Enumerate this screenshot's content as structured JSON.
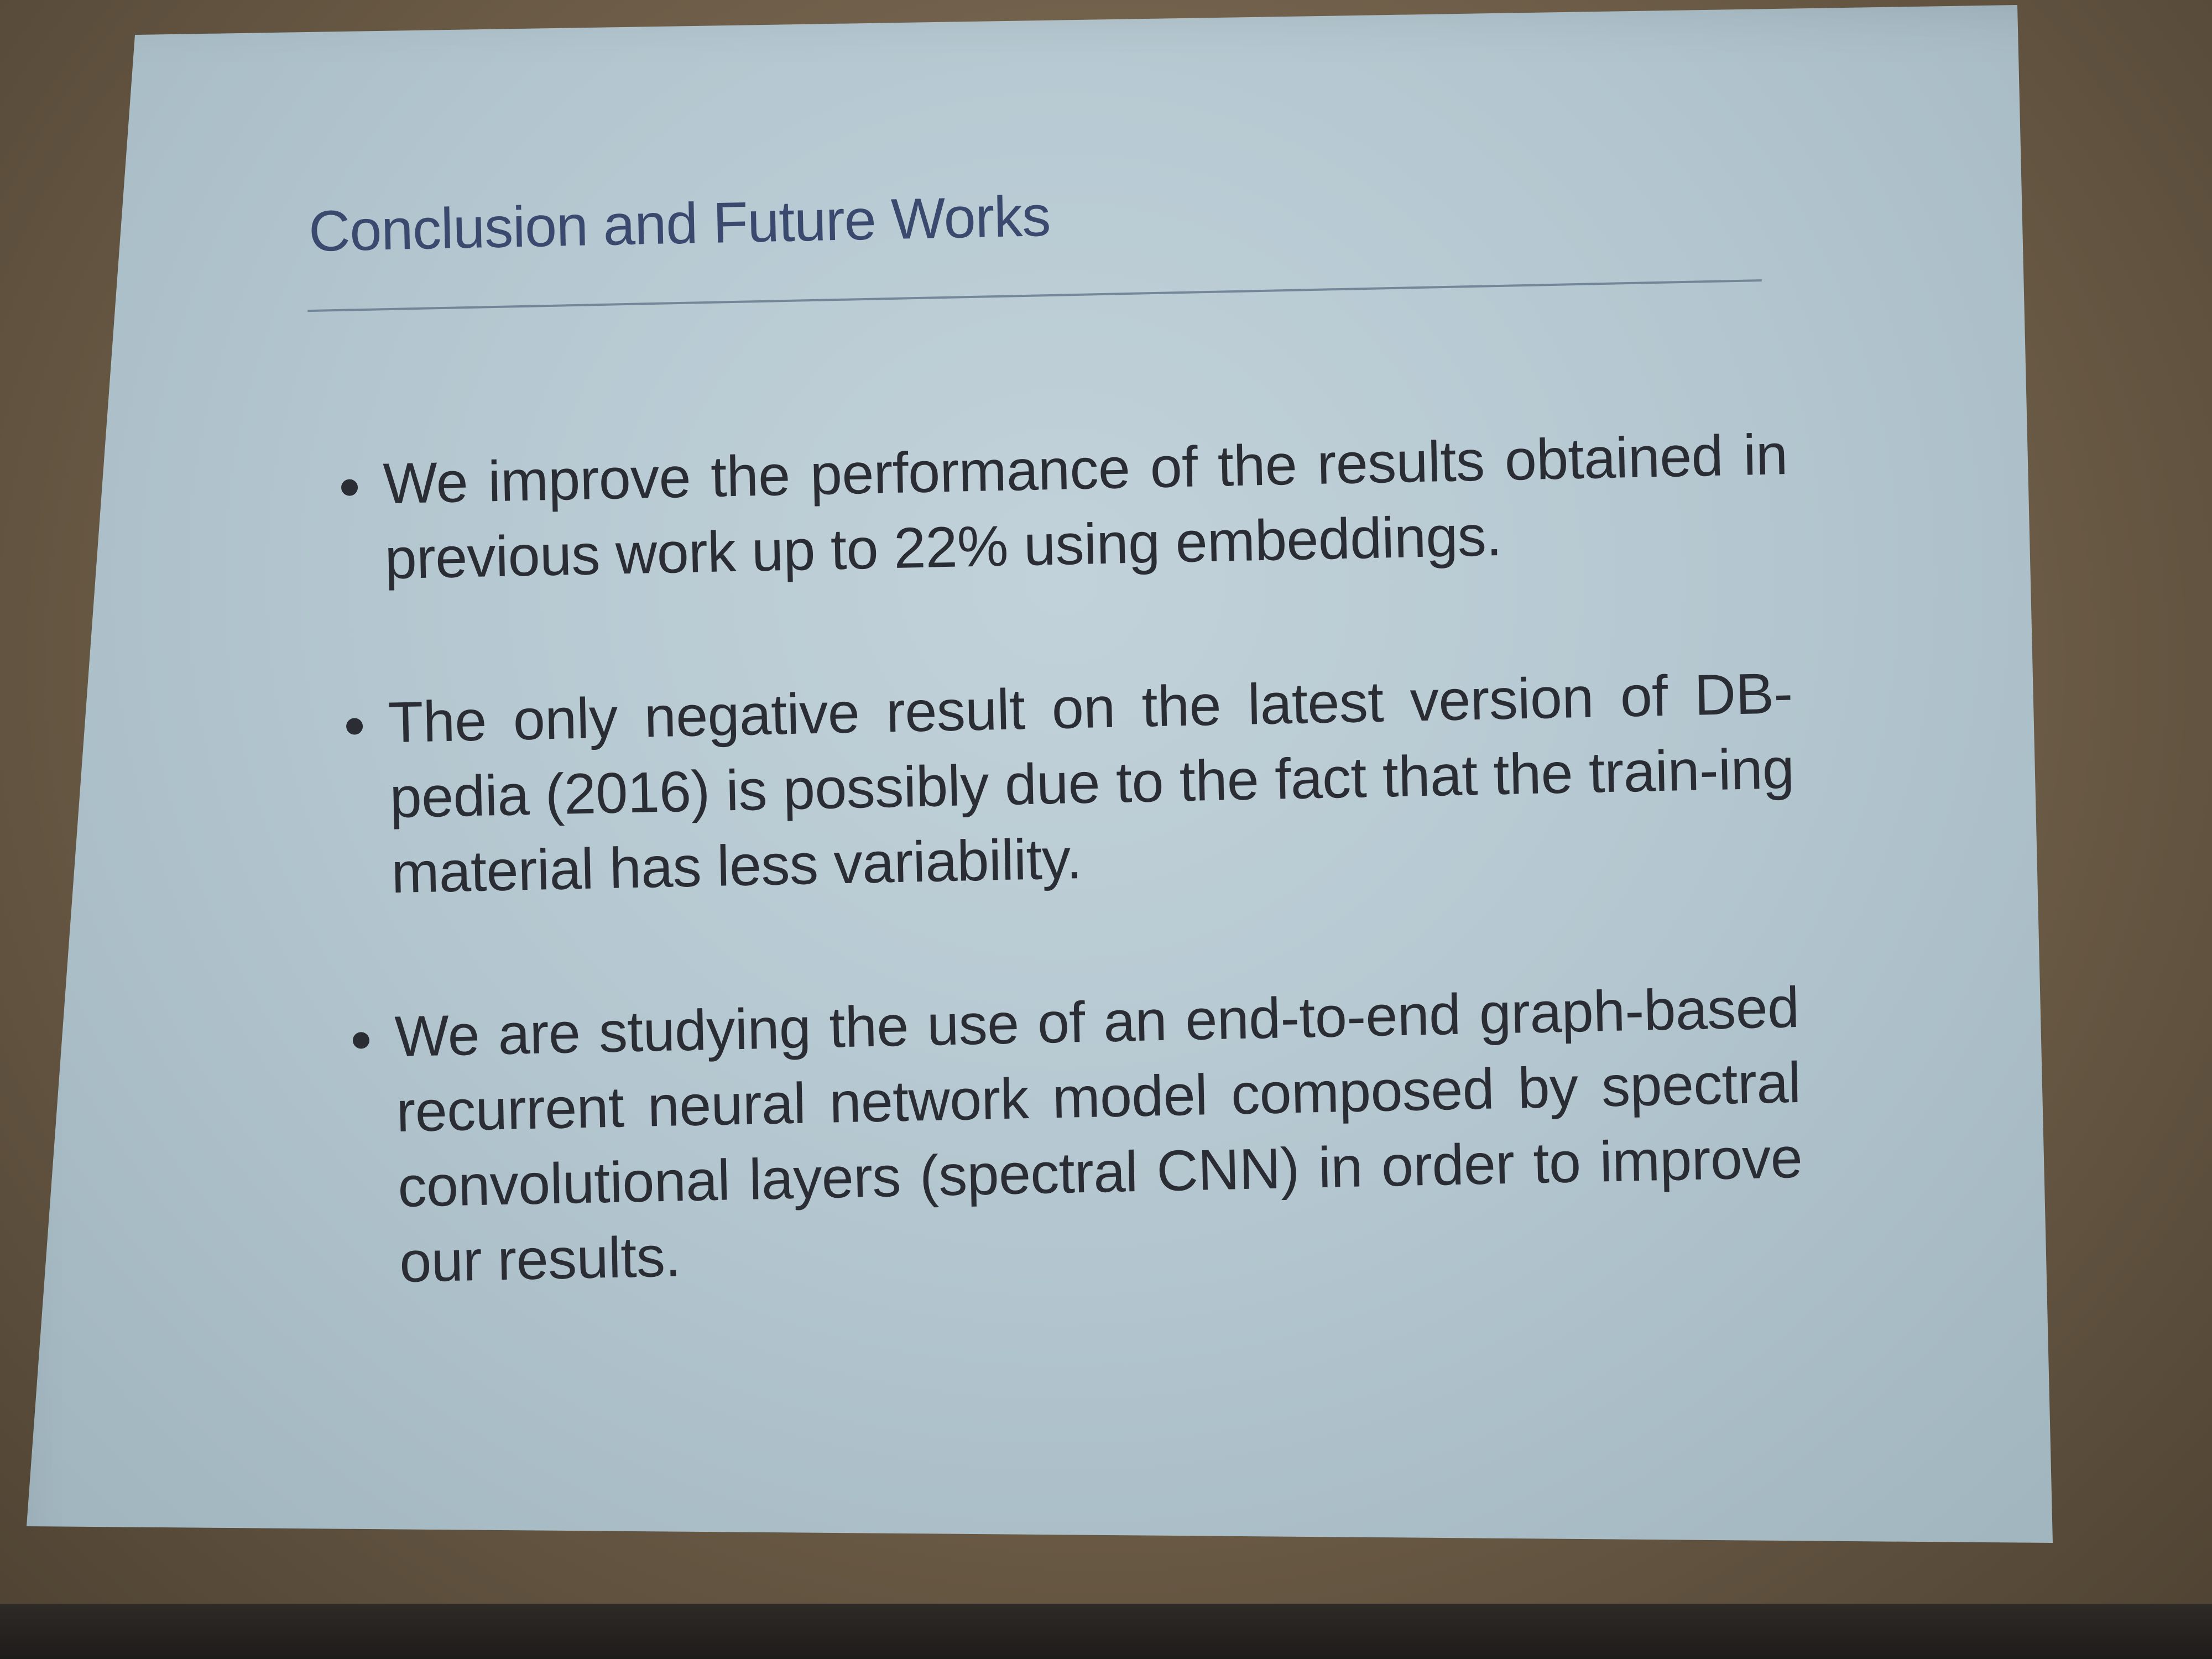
{
  "slide": {
    "title": "Conclusion and Future Works",
    "bullets": [
      {
        "text": "We improve the performance of the results obtained in previous work up to 22% using embeddings."
      },
      {
        "text": "The only negative result on the latest version of DB-pedia (2016) is possibly due to the fact that the train-ing material has less variability."
      },
      {
        "text": "We are studying the use of an end-to-end graph-based recurrent neural network model composed by spectral convolutional layers (spectral CNN) in order to improve our results."
      }
    ]
  },
  "colors": {
    "title": "#3a4a6e",
    "body_text": "#2a2d33",
    "slide_background": "#b3c6cf",
    "wall": "#6a5c4a"
  }
}
